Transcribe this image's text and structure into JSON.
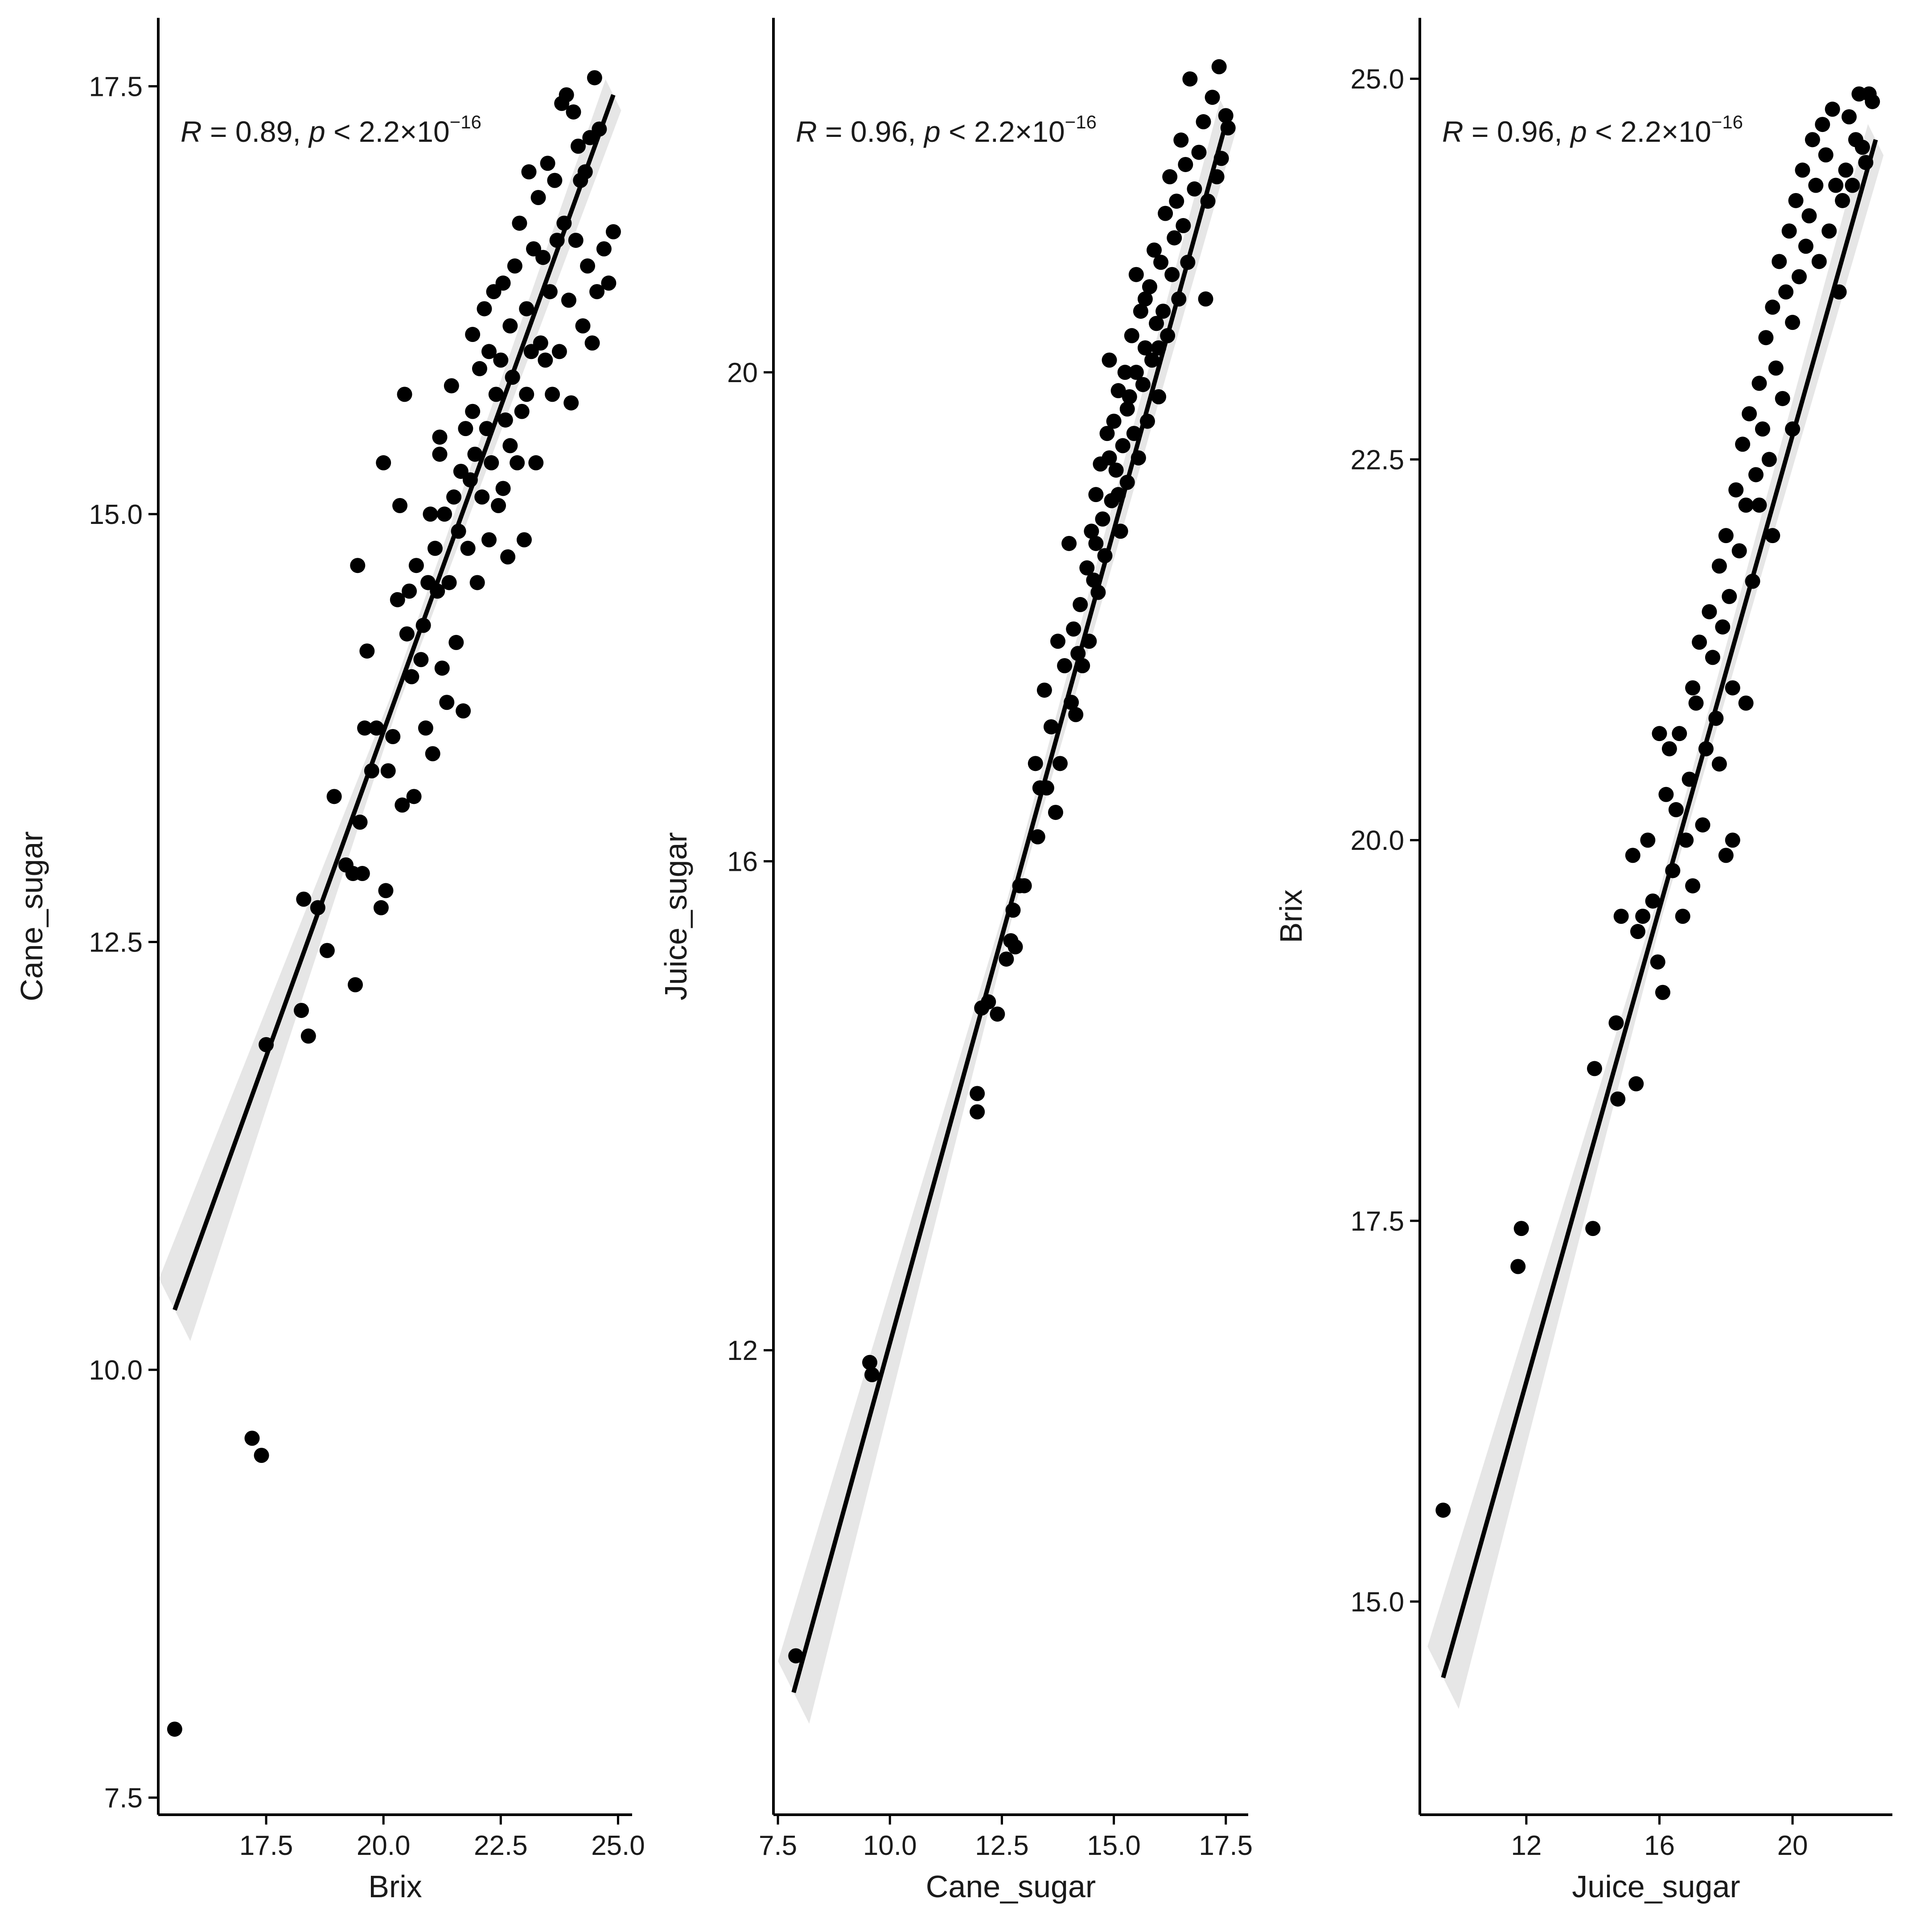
{
  "chart_data": [
    {
      "type": "scatter",
      "xlabel": "Brix",
      "ylabel": "Cane_sugar",
      "xlim": [
        15.2,
        25.3
      ],
      "ylim": [
        7.4,
        17.9
      ],
      "xticks": [
        17.5,
        20.0,
        22.5,
        25.0
      ],
      "xtick_labels": [
        "17.5",
        "20.0",
        "22.5",
        "25.0"
      ],
      "yticks": [
        7.5,
        10.0,
        12.5,
        15.0,
        17.5
      ],
      "ytick_labels": [
        "7.5",
        "10.0",
        "12.5",
        "15.0",
        "17.5"
      ],
      "grid": false,
      "annotation": {
        "r_label": "R",
        "r_text": " = 0.89, ",
        "p_label": "p",
        "p_text": " < 2.2×10",
        "p_exp": "−16"
      },
      "fit_line": {
        "x": [
          15.55,
          24.9
        ],
        "y": [
          10.35,
          17.45
        ]
      },
      "points": [
        [
          15.55,
          7.9
        ],
        [
          17.2,
          9.6
        ],
        [
          17.4,
          9.5
        ],
        [
          17.5,
          11.9
        ],
        [
          18.25,
          12.1
        ],
        [
          18.3,
          12.75
        ],
        [
          18.4,
          11.95
        ],
        [
          18.6,
          12.7
        ],
        [
          18.8,
          12.45
        ],
        [
          18.95,
          13.35
        ],
        [
          19.2,
          12.95
        ],
        [
          19.35,
          12.9
        ],
        [
          19.4,
          12.25
        ],
        [
          19.45,
          14.7
        ],
        [
          19.5,
          13.2
        ],
        [
          19.55,
          12.9
        ],
        [
          19.6,
          13.75
        ],
        [
          19.65,
          14.2
        ],
        [
          19.75,
          13.5
        ],
        [
          19.85,
          13.75
        ],
        [
          19.95,
          12.7
        ],
        [
          20.0,
          15.3
        ],
        [
          20.05,
          12.8
        ],
        [
          20.1,
          13.5
        ],
        [
          20.2,
          13.7
        ],
        [
          20.3,
          14.5
        ],
        [
          20.35,
          15.05
        ],
        [
          20.4,
          13.3
        ],
        [
          20.45,
          15.7
        ],
        [
          20.5,
          14.3
        ],
        [
          20.6,
          14.05
        ],
        [
          20.65,
          13.35
        ],
        [
          20.7,
          14.7
        ],
        [
          20.8,
          14.15
        ],
        [
          20.9,
          13.75
        ],
        [
          20.95,
          14.6
        ],
        [
          21.0,
          15.0
        ],
        [
          21.05,
          13.6
        ],
        [
          21.15,
          14.55
        ],
        [
          21.2,
          15.35
        ],
        [
          21.25,
          14.1
        ],
        [
          21.3,
          15.0
        ],
        [
          21.35,
          13.9
        ],
        [
          21.4,
          14.6
        ],
        [
          21.45,
          15.75
        ],
        [
          21.5,
          15.1
        ],
        [
          21.55,
          14.25
        ],
        [
          21.6,
          14.9
        ],
        [
          21.7,
          13.85
        ],
        [
          21.75,
          15.5
        ],
        [
          21.8,
          14.8
        ],
        [
          21.85,
          15.2
        ],
        [
          21.9,
          16.05
        ],
        [
          21.95,
          15.35
        ],
        [
          22.0,
          14.6
        ],
        [
          22.05,
          15.85
        ],
        [
          22.1,
          15.1
        ],
        [
          22.15,
          16.2
        ],
        [
          22.2,
          15.5
        ],
        [
          22.25,
          14.85
        ],
        [
          22.3,
          15.3
        ],
        [
          22.35,
          16.3
        ],
        [
          22.4,
          15.7
        ],
        [
          22.45,
          15.05
        ],
        [
          22.5,
          15.9
        ],
        [
          22.55,
          16.35
        ],
        [
          22.6,
          15.55
        ],
        [
          22.65,
          14.75
        ],
        [
          22.7,
          16.1
        ],
        [
          22.75,
          15.8
        ],
        [
          22.8,
          16.45
        ],
        [
          22.85,
          15.3
        ],
        [
          22.9,
          16.7
        ],
        [
          22.95,
          15.6
        ],
        [
          23.0,
          14.85
        ],
        [
          23.05,
          16.2
        ],
        [
          23.1,
          17.0
        ],
        [
          23.15,
          15.95
        ],
        [
          23.2,
          16.55
        ],
        [
          23.25,
          15.3
        ],
        [
          23.3,
          16.85
        ],
        [
          23.35,
          16.0
        ],
        [
          23.4,
          16.5
        ],
        [
          23.45,
          15.9
        ],
        [
          23.5,
          17.05
        ],
        [
          23.55,
          16.3
        ],
        [
          23.6,
          15.7
        ],
        [
          23.65,
          16.95
        ],
        [
          23.7,
          16.6
        ],
        [
          23.75,
          15.95
        ],
        [
          23.8,
          17.4
        ],
        [
          23.85,
          16.7
        ],
        [
          23.9,
          17.45
        ],
        [
          23.95,
          16.25
        ],
        [
          24.0,
          15.65
        ],
        [
          24.05,
          17.35
        ],
        [
          24.1,
          16.6
        ],
        [
          24.15,
          17.15
        ],
        [
          24.2,
          16.95
        ],
        [
          24.25,
          16.1
        ],
        [
          24.3,
          17.0
        ],
        [
          24.35,
          16.45
        ],
        [
          24.4,
          17.2
        ],
        [
          24.45,
          16.0
        ],
        [
          24.5,
          17.55
        ],
        [
          24.55,
          16.3
        ],
        [
          24.6,
          17.25
        ],
        [
          24.7,
          16.55
        ],
        [
          24.8,
          16.35
        ],
        [
          24.9,
          16.65
        ],
        [
          21.2,
          15.45
        ],
        [
          21.65,
          15.25
        ],
        [
          22.25,
          15.95
        ],
        [
          22.55,
          15.15
        ],
        [
          20.85,
          14.35
        ],
        [
          21.1,
          14.8
        ],
        [
          21.9,
          15.6
        ],
        [
          22.7,
          15.4
        ],
        [
          23.05,
          15.7
        ],
        [
          20.55,
          14.55
        ]
      ]
    },
    {
      "type": "scatter",
      "xlabel": "Cane_sugar",
      "ylabel": "Juice_sugar",
      "xlim": [
        7.4,
        18.0
      ],
      "ylim": [
        8.2,
        22.9
      ],
      "xticks": [
        7.5,
        10.0,
        12.5,
        15.0,
        17.5
      ],
      "xtick_labels": [
        "7.5",
        "10.0",
        "12.5",
        "15.0",
        "17.5"
      ],
      "yticks": [
        12,
        16,
        20
      ],
      "ytick_labels": [
        "12",
        "16",
        "20"
      ],
      "grid": false,
      "annotation": {
        "r_label": "R",
        "r_text": " = 0.96, ",
        "p_label": "p",
        "p_text": " < 2.2×10",
        "p_exp": "−16"
      },
      "fit_line": {
        "x": [
          7.85,
          17.55
        ],
        "y": [
          9.2,
          22.1
        ]
      },
      "points": [
        [
          7.9,
          9.5
        ],
        [
          9.55,
          11.9
        ],
        [
          9.6,
          11.8
        ],
        [
          11.95,
          14.1
        ],
        [
          11.95,
          13.95
        ],
        [
          12.05,
          14.8
        ],
        [
          12.2,
          14.85
        ],
        [
          12.4,
          14.75
        ],
        [
          12.6,
          15.2
        ],
        [
          12.7,
          15.35
        ],
        [
          12.75,
          15.6
        ],
        [
          12.8,
          15.3
        ],
        [
          12.9,
          15.8
        ],
        [
          13.0,
          15.8
        ],
        [
          13.25,
          16.8
        ],
        [
          13.3,
          16.2
        ],
        [
          13.35,
          16.6
        ],
        [
          13.45,
          17.4
        ],
        [
          13.5,
          16.6
        ],
        [
          13.6,
          17.1
        ],
        [
          13.7,
          16.4
        ],
        [
          13.75,
          17.8
        ],
        [
          13.8,
          16.8
        ],
        [
          13.9,
          17.6
        ],
        [
          14.0,
          18.6
        ],
        [
          14.05,
          17.3
        ],
        [
          14.1,
          17.9
        ],
        [
          14.15,
          17.2
        ],
        [
          14.25,
          18.1
        ],
        [
          14.3,
          17.6
        ],
        [
          14.4,
          18.4
        ],
        [
          14.45,
          17.8
        ],
        [
          14.5,
          18.7
        ],
        [
          14.55,
          18.3
        ],
        [
          14.6,
          19.0
        ],
        [
          14.65,
          18.2
        ],
        [
          14.7,
          19.25
        ],
        [
          14.75,
          18.8
        ],
        [
          14.8,
          18.5
        ],
        [
          14.85,
          19.5
        ],
        [
          14.9,
          20.1
        ],
        [
          14.95,
          18.95
        ],
        [
          15.0,
          19.6
        ],
        [
          15.05,
          19.2
        ],
        [
          15.1,
          19.85
        ],
        [
          15.15,
          18.7
        ],
        [
          15.2,
          19.4
        ],
        [
          15.25,
          20.0
        ],
        [
          15.3,
          19.1
        ],
        [
          15.35,
          19.8
        ],
        [
          15.4,
          20.3
        ],
        [
          15.45,
          19.5
        ],
        [
          15.5,
          20.0
        ],
        [
          15.55,
          19.3
        ],
        [
          15.6,
          20.5
        ],
        [
          15.65,
          19.9
        ],
        [
          15.7,
          20.2
        ],
        [
          15.75,
          19.6
        ],
        [
          15.8,
          20.7
        ],
        [
          15.85,
          20.1
        ],
        [
          15.9,
          21.0
        ],
        [
          15.95,
          20.4
        ],
        [
          16.0,
          19.8
        ],
        [
          16.05,
          20.9
        ],
        [
          16.1,
          20.5
        ],
        [
          16.15,
          21.3
        ],
        [
          16.2,
          20.3
        ],
        [
          16.25,
          21.6
        ],
        [
          16.3,
          20.8
        ],
        [
          16.35,
          21.1
        ],
        [
          16.4,
          21.4
        ],
        [
          16.45,
          20.6
        ],
        [
          16.5,
          21.9
        ],
        [
          16.55,
          21.2
        ],
        [
          16.6,
          21.7
        ],
        [
          16.65,
          20.9
        ],
        [
          16.7,
          22.4
        ],
        [
          16.8,
          21.5
        ],
        [
          16.9,
          21.8
        ],
        [
          17.0,
          22.05
        ],
        [
          17.05,
          20.6
        ],
        [
          17.1,
          21.4
        ],
        [
          17.2,
          22.25
        ],
        [
          17.3,
          21.6
        ],
        [
          17.4,
          21.75
        ],
        [
          17.5,
          22.1
        ],
        [
          17.55,
          22.0
        ],
        [
          17.35,
          22.5
        ],
        [
          15.1,
          19.0
        ],
        [
          14.9,
          19.3
        ],
        [
          15.3,
          19.7
        ],
        [
          15.7,
          20.6
        ],
        [
          16.0,
          20.2
        ],
        [
          14.6,
          18.6
        ],
        [
          14.2,
          17.7
        ],
        [
          15.5,
          20.8
        ]
      ]
    },
    {
      "type": "scatter",
      "xlabel": "Juice_sugar",
      "ylabel": "Brix",
      "xlim": [
        8.8,
        23.0
      ],
      "ylim": [
        13.6,
        25.4
      ],
      "xticks": [
        12,
        16,
        20
      ],
      "xtick_labels": [
        "12",
        "16",
        "20"
      ],
      "yticks": [
        15.0,
        17.5,
        20.0,
        22.5,
        25.0
      ],
      "ytick_labels": [
        "15.0",
        "17.5",
        "20.0",
        "22.5",
        "25.0"
      ],
      "grid": false,
      "annotation": {
        "r_label": "R",
        "r_text": " = 0.96, ",
        "p_label": "p",
        "p_text": " < 2.2×10",
        "p_exp": "−16"
      },
      "fit_line": {
        "x": [
          9.5,
          22.5
        ],
        "y": [
          14.5,
          24.6
        ]
      },
      "points": [
        [
          9.5,
          15.6
        ],
        [
          11.75,
          17.2
        ],
        [
          11.85,
          17.45
        ],
        [
          14.0,
          17.45
        ],
        [
          14.05,
          18.5
        ],
        [
          14.7,
          18.8
        ],
        [
          14.75,
          18.3
        ],
        [
          14.85,
          19.5
        ],
        [
          15.2,
          19.9
        ],
        [
          15.3,
          18.4
        ],
        [
          15.35,
          19.4
        ],
        [
          15.5,
          19.5
        ],
        [
          15.65,
          20.0
        ],
        [
          15.8,
          19.6
        ],
        [
          15.95,
          19.2
        ],
        [
          16.1,
          19.0
        ],
        [
          16.2,
          20.3
        ],
        [
          16.3,
          20.6
        ],
        [
          16.4,
          19.8
        ],
        [
          16.5,
          20.2
        ],
        [
          16.6,
          20.7
        ],
        [
          16.7,
          19.5
        ],
        [
          16.8,
          20.0
        ],
        [
          16.9,
          20.4
        ],
        [
          17.0,
          21.0
        ],
        [
          17.1,
          20.9
        ],
        [
          17.2,
          21.3
        ],
        [
          17.3,
          20.1
        ],
        [
          17.4,
          20.6
        ],
        [
          17.5,
          21.5
        ],
        [
          17.6,
          21.2
        ],
        [
          17.7,
          20.8
        ],
        [
          17.8,
          21.8
        ],
        [
          17.9,
          21.4
        ],
        [
          18.0,
          22.0
        ],
        [
          18.1,
          21.6
        ],
        [
          18.2,
          20.0
        ],
        [
          18.3,
          22.3
        ],
        [
          18.4,
          21.9
        ],
        [
          18.5,
          22.6
        ],
        [
          18.6,
          22.2
        ],
        [
          18.7,
          22.8
        ],
        [
          18.8,
          21.7
        ],
        [
          18.9,
          22.4
        ],
        [
          19.0,
          23.0
        ],
        [
          19.1,
          22.7
        ],
        [
          19.2,
          23.3
        ],
        [
          19.3,
          22.5
        ],
        [
          19.4,
          23.5
        ],
        [
          19.5,
          23.1
        ],
        [
          19.6,
          23.8
        ],
        [
          19.7,
          22.9
        ],
        [
          19.8,
          23.6
        ],
        [
          19.9,
          24.0
        ],
        [
          20.0,
          23.4
        ],
        [
          20.1,
          24.2
        ],
        [
          20.2,
          23.7
        ],
        [
          20.3,
          24.4
        ],
        [
          20.4,
          23.9
        ],
        [
          20.5,
          24.1
        ],
        [
          20.6,
          24.6
        ],
        [
          20.7,
          24.3
        ],
        [
          20.8,
          23.8
        ],
        [
          20.9,
          24.7
        ],
        [
          21.0,
          24.5
        ],
        [
          21.1,
          24.0
        ],
        [
          21.2,
          24.8
        ],
        [
          21.3,
          24.3
        ],
        [
          21.4,
          23.6
        ],
        [
          21.5,
          24.2
        ],
        [
          21.6,
          24.4
        ],
        [
          21.7,
          24.75
        ],
        [
          21.8,
          24.3
        ],
        [
          21.9,
          24.6
        ],
        [
          22.0,
          24.9
        ],
        [
          22.1,
          24.55
        ],
        [
          22.2,
          24.45
        ],
        [
          22.3,
          24.9
        ],
        [
          22.4,
          24.85
        ],
        [
          17.8,
          20.5
        ],
        [
          18.2,
          21.0
        ],
        [
          18.6,
          20.9
        ],
        [
          19.4,
          22.0
        ],
        [
          17.0,
          19.7
        ],
        [
          16.0,
          20.7
        ],
        [
          18.0,
          19.9
        ],
        [
          19.0,
          22.2
        ],
        [
          20.0,
          22.7
        ]
      ]
    }
  ]
}
